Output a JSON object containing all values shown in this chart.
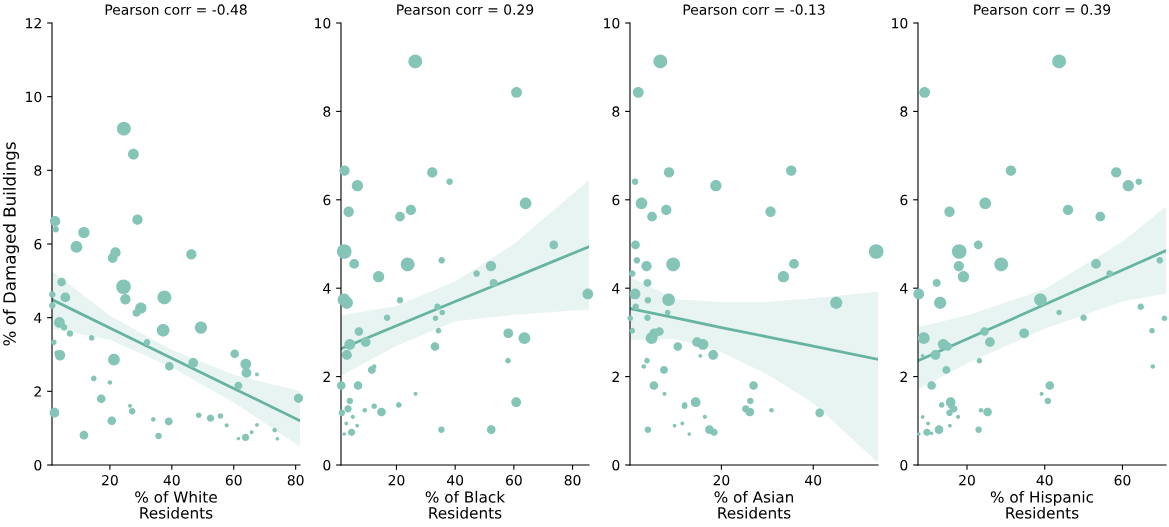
{
  "chart_data": [
    {
      "type": "bubble",
      "title": "Pearson corr = -0.48",
      "xlabel": "% of White\nResidents",
      "ylabel": "% of Damaged Buildings",
      "xlim": [
        1.3,
        81.4
      ],
      "ylim": [
        0,
        12
      ],
      "xticks": [
        20,
        40,
        60,
        80
      ],
      "yticks": [
        0,
        2,
        4,
        6,
        8,
        10,
        12
      ],
      "series": [
        {
          "type": "bubble",
          "color": "#85c5b8",
          "x": [
            24.5,
            27.6,
            2.3,
            2.5,
            11.6,
            9.2,
            28.9,
            21.8,
            20.9,
            46.3,
            4.4,
            1.4,
            5.6,
            24.4,
            25.0,
            37.6,
            30.0,
            28.6,
            1.4,
            3.7,
            5.2,
            7.1,
            37.2,
            49.4,
            1.9,
            14.1,
            32.0,
            3.1,
            3.9,
            21.3,
            39.2,
            46.9,
            60.3,
            63.9,
            64.1,
            67.5,
            61.5,
            14.8,
            20.0,
            17.2,
            2.1,
            26.5,
            27.2,
            20.6,
            34.0,
            39.0,
            48.7,
            52.5,
            55.7,
            57.7,
            67.5,
            65.8,
            73.2,
            61.5,
            63.8,
            74.1,
            11.6,
            35.7,
            80.9
          ],
          "values": [
            9.13,
            8.44,
            6.62,
            6.4,
            6.31,
            5.92,
            6.66,
            5.77,
            5.62,
            5.72,
            4.97,
            4.63,
            4.55,
            4.84,
            4.5,
            4.55,
            4.26,
            4.13,
            4.33,
            3.87,
            3.74,
            3.57,
            3.66,
            3.73,
            3.33,
            3.45,
            3.33,
            3.03,
            2.98,
            2.86,
            2.68,
            2.77,
            3.02,
            2.74,
            2.5,
            2.46,
            2.15,
            2.35,
            2.24,
            1.8,
            1.42,
            1.61,
            1.46,
            1.2,
            1.24,
            1.18,
            1.35,
            1.27,
            1.33,
            1.08,
            1.09,
            0.89,
            0.95,
            0.72,
            0.75,
            0.71,
            0.81,
            0.79,
            1.81
          ],
          "sizes": [
            0.9,
            0.55,
            0.5,
            0.2,
            0.6,
            0.65,
            0.5,
            0.5,
            0.45,
            0.5,
            0.35,
            0.2,
            0.45,
            1.0,
            0.5,
            0.9,
            0.6,
            0.3,
            0.2,
            0.55,
            0.2,
            0.2,
            0.75,
            0.7,
            0.15,
            0.15,
            0.2,
            0.2,
            0.5,
            0.65,
            0.35,
            0.45,
            0.35,
            0.55,
            0.45,
            0.07,
            0.3,
            0.15,
            0.1,
            0.35,
            0.45,
            0.08,
            0.2,
            0.35,
            0.1,
            0.3,
            0.15,
            0.25,
            0.15,
            0.08,
            0.07,
            0.07,
            0.1,
            0.06,
            0.25,
            0.06,
            0.35,
            0.2,
            0.4
          ]
        },
        {
          "type": "line",
          "color": "#66b3a2",
          "x": [
            1.3,
            20,
            40,
            60,
            81.4
          ],
          "values": [
            4.49,
            3.72,
            2.9,
            2.08,
            1.2
          ],
          "upper": [
            5.27,
            4.05,
            3.12,
            2.45,
            2.0
          ],
          "lower": [
            3.7,
            3.4,
            2.65,
            1.7,
            0.5
          ]
        }
      ]
    },
    {
      "type": "bubble",
      "title": "Pearson corr = 0.29",
      "xlabel": "% of Black\nResidents",
      "xlim": [
        1.1,
        85.6
      ],
      "ylim": [
        0,
        10
      ],
      "xticks": [
        20,
        40,
        60,
        80
      ],
      "yticks": [
        0,
        2,
        4,
        6,
        8,
        10
      ],
      "series": [
        {
          "type": "bubble",
          "color": "#85c5b8",
          "x": [
            26.4,
            60.9,
            2.3,
            32.2,
            38.1,
            6.7,
            64.0,
            3.7,
            24.9,
            21.2,
            2.2,
            73.6,
            35.4,
            5.6,
            23.8,
            52.2,
            13.9,
            47.3,
            53.1,
            85.2,
            2.1,
            3.1,
            21.2,
            34.0,
            35.6,
            16.8,
            33.3,
            7.2,
            34.3,
            58.1,
            63.6,
            4.1,
            9.5,
            33.1,
            3.1,
            4.1,
            58.0,
            11.6,
            12.4,
            1.2,
            6.9,
            26.5,
            60.8,
            4.1,
            3.5,
            1.4,
            9.2,
            12.4,
            20.8,
            14.9,
            5.1,
            2.9,
            6.6,
            4.7,
            2.2,
            35.3,
            52.3
          ],
          "values": [
            9.13,
            8.43,
            6.66,
            6.62,
            6.41,
            6.32,
            5.92,
            5.73,
            5.77,
            5.62,
            4.83,
            4.98,
            4.63,
            4.55,
            4.54,
            4.5,
            4.26,
            4.33,
            4.12,
            3.87,
            3.74,
            3.67,
            3.73,
            3.58,
            3.45,
            3.33,
            3.32,
            3.02,
            3.04,
            2.98,
            2.87,
            2.73,
            2.78,
            2.68,
            2.49,
            2.47,
            2.36,
            2.15,
            2.23,
            1.8,
            1.8,
            1.61,
            1.42,
            1.45,
            1.27,
            1.18,
            1.24,
            1.33,
            1.36,
            1.2,
            1.09,
            0.94,
            0.89,
            0.74,
            0.7,
            0.8,
            0.8
          ],
          "sizes": [
            0.9,
            0.55,
            0.5,
            0.5,
            0.2,
            0.6,
            0.65,
            0.5,
            0.5,
            0.45,
            1.0,
            0.35,
            0.2,
            0.45,
            0.9,
            0.5,
            0.6,
            0.2,
            0.3,
            0.55,
            0.75,
            0.7,
            0.2,
            0.2,
            0.15,
            0.2,
            0.15,
            0.35,
            0.15,
            0.45,
            0.65,
            0.55,
            0.45,
            0.35,
            0.45,
            0.07,
            0.15,
            0.3,
            0.1,
            0.35,
            0.35,
            0.08,
            0.45,
            0.2,
            0.25,
            0.2,
            0.1,
            0.15,
            0.15,
            0.35,
            0.08,
            0.07,
            0.07,
            0.25,
            0.06,
            0.2,
            0.35
          ]
        },
        {
          "type": "line",
          "color": "#66b3a2",
          "x": [
            1.1,
            20,
            40,
            60,
            85.6
          ],
          "values": [
            2.63,
            3.15,
            3.7,
            4.24,
            4.94
          ],
          "upper": [
            3.39,
            3.6,
            4.15,
            5.0,
            6.45
          ],
          "lower": [
            2.02,
            2.7,
            3.25,
            3.4,
            3.52
          ]
        }
      ]
    },
    {
      "type": "bubble",
      "title": "Pearson corr = -0.13",
      "xlabel": "% of Asian\nResidents",
      "xlim": [
        0.1,
        54.1
      ],
      "ylim": [
        0,
        10
      ],
      "xticks": [
        20,
        40
      ],
      "yticks": [
        0,
        2,
        4,
        6,
        8,
        10
      ],
      "series": [
        {
          "type": "bubble",
          "color": "#85c5b8",
          "x": [
            6.7,
            1.9,
            8.6,
            35.2,
            1.2,
            18.8,
            2.6,
            8.0,
            4.9,
            30.7,
            1.3,
            53.7,
            1.6,
            3.7,
            9.5,
            35.8,
            33.5,
            0.6,
            3.9,
            1.2,
            4.0,
            8.5,
            45.0,
            1.35,
            8.3,
            0.15,
            3.9,
            0.6,
            6.5,
            5.4,
            4.8,
            14.7,
            16.0,
            10.5,
            18.2,
            15.4,
            3.8,
            3.1,
            7.5,
            5.3,
            27.0,
            7.6,
            14.4,
            26.3,
            25.3,
            26.2,
            30.9,
            11.96,
            41.4,
            16.4,
            11.5,
            9.8,
            17.4,
            18.4,
            13.0,
            4.0,
            12.0
          ],
          "values": [
            9.13,
            8.43,
            6.62,
            6.66,
            6.41,
            6.32,
            5.92,
            5.77,
            5.62,
            5.73,
            4.98,
            4.83,
            4.63,
            4.5,
            4.54,
            4.55,
            4.26,
            4.33,
            4.12,
            3.87,
            3.73,
            3.74,
            3.67,
            3.58,
            3.45,
            3.32,
            3.33,
            3.04,
            3.02,
            2.98,
            2.87,
            2.78,
            2.73,
            2.68,
            2.49,
            2.47,
            2.36,
            2.23,
            2.15,
            1.8,
            1.8,
            1.61,
            1.42,
            1.45,
            1.27,
            1.2,
            1.24,
            1.33,
            1.18,
            1.09,
            0.94,
            0.89,
            0.8,
            0.74,
            0.7,
            0.8,
            1.36
          ],
          "sizes": [
            0.9,
            0.55,
            0.5,
            0.5,
            0.2,
            0.6,
            0.65,
            0.5,
            0.45,
            0.5,
            0.35,
            1.0,
            0.2,
            0.5,
            0.9,
            0.45,
            0.6,
            0.2,
            0.3,
            0.55,
            0.2,
            0.75,
            0.7,
            0.2,
            0.15,
            0.15,
            0.2,
            0.15,
            0.35,
            0.45,
            0.65,
            0.45,
            0.55,
            0.35,
            0.45,
            0.07,
            0.15,
            0.1,
            0.3,
            0.35,
            0.35,
            0.08,
            0.45,
            0.2,
            0.25,
            0.35,
            0.1,
            0.15,
            0.35,
            0.08,
            0.07,
            0.07,
            0.35,
            0.25,
            0.06,
            0.2,
            0.15
          ]
        },
        {
          "type": "line",
          "color": "#66b3a2",
          "x": [
            0.15,
            10,
            20,
            30,
            40,
            54.1
          ],
          "values": [
            3.54,
            3.33,
            3.11,
            2.9,
            2.69,
            2.39
          ],
          "upper": [
            4.26,
            3.75,
            3.69,
            3.69,
            3.77,
            3.92
          ],
          "lower": [
            2.82,
            2.85,
            2.55,
            2.05,
            1.4,
            0.05
          ]
        }
      ]
    },
    {
      "type": "bubble",
      "title": "Pearson corr = 0.39",
      "xlabel": "% of Hispanic\nResidents",
      "xlim": [
        7.4,
        71.2
      ],
      "ylim": [
        0,
        10
      ],
      "xticks": [
        20,
        40,
        60
      ],
      "yticks": [
        0,
        2,
        4,
        6,
        8,
        10
      ],
      "series": [
        {
          "type": "bubble",
          "color": "#85c5b8",
          "x": [
            43.7,
            9.1,
            31.3,
            58.4,
            64.2,
            61.5,
            24.7,
            15.5,
            46.0,
            54.3,
            22.9,
            18.0,
            69.6,
            17.9,
            28.8,
            53.2,
            19.1,
            56.7,
            12.2,
            7.6,
            38.9,
            13.1,
            64.7,
            43.7,
            50.0,
            70.8,
            67.6,
            24.5,
            34.7,
            8.9,
            25.9,
            13.9,
            15.0,
            11.9,
            8.6,
            23.2,
            67.8,
            14.7,
            10.9,
            41.3,
            39.2,
            15.8,
            40.8,
            16.6,
            15.5,
            23.6,
            15.9,
            13.5,
            25.3,
            17.7,
            8.6,
            10.0,
            15.6,
            12.8,
            9.7,
            7.6,
            23.0,
            10.9
          ],
          "values": [
            9.13,
            8.43,
            6.66,
            6.62,
            6.41,
            6.32,
            5.92,
            5.73,
            5.77,
            5.62,
            4.98,
            4.83,
            4.63,
            4.5,
            4.54,
            4.55,
            4.26,
            4.33,
            4.12,
            3.87,
            3.74,
            3.67,
            3.58,
            3.45,
            3.33,
            3.32,
            3.04,
            3.02,
            2.98,
            2.87,
            2.78,
            2.73,
            2.68,
            2.49,
            2.47,
            2.36,
            2.23,
            2.15,
            1.8,
            1.8,
            1.61,
            1.42,
            1.45,
            1.27,
            1.18,
            1.24,
            1.33,
            1.36,
            1.2,
            1.09,
            1.09,
            0.94,
            0.89,
            0.8,
            0.74,
            0.7,
            0.8,
            0.72
          ],
          "sizes": [
            0.9,
            0.55,
            0.5,
            0.5,
            0.2,
            0.6,
            0.65,
            0.5,
            0.5,
            0.45,
            0.35,
            1.0,
            0.2,
            0.5,
            0.9,
            0.45,
            0.6,
            0.2,
            0.3,
            0.55,
            0.75,
            0.7,
            0.2,
            0.15,
            0.2,
            0.15,
            0.15,
            0.35,
            0.45,
            0.65,
            0.45,
            0.55,
            0.35,
            0.45,
            0.07,
            0.15,
            0.1,
            0.3,
            0.35,
            0.35,
            0.08,
            0.45,
            0.2,
            0.25,
            0.2,
            0.1,
            0.15,
            0.15,
            0.35,
            0.08,
            0.07,
            0.07,
            0.07,
            0.35,
            0.25,
            0.06,
            0.2,
            0.06
          ]
        },
        {
          "type": "line",
          "color": "#66b3a2",
          "x": [
            7.4,
            20,
            40,
            60,
            71.2
          ],
          "values": [
            2.36,
            2.85,
            3.63,
            4.41,
            4.85
          ],
          "upper": [
            3.12,
            3.38,
            3.98,
            5.05,
            5.85
          ],
          "lower": [
            1.7,
            2.3,
            3.08,
            3.7,
            3.88
          ]
        }
      ]
    }
  ]
}
